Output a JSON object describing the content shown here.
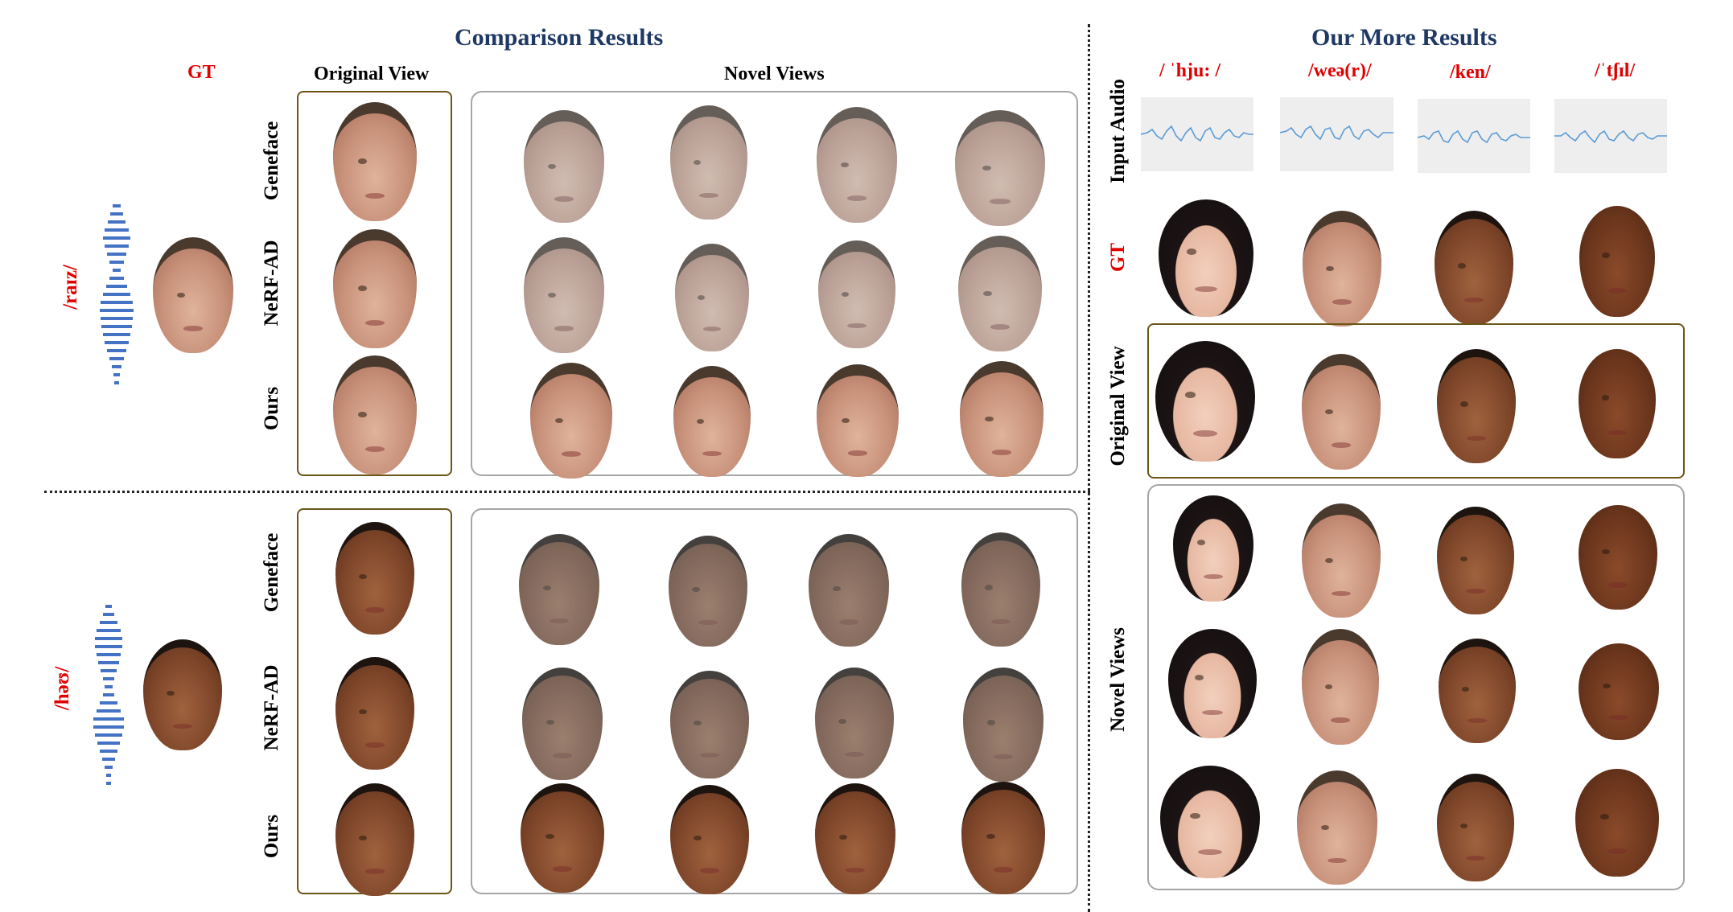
{
  "left": {
    "title": "Comparison Results",
    "gt_label": "GT",
    "original_view_label": "Original View",
    "novel_views_label": "Novel Views",
    "row_labels": [
      "Geneface",
      "NeRF-AD",
      "Ours"
    ],
    "panels": [
      {
        "phoneme": "/raɪz/",
        "subject": "macron"
      },
      {
        "phoneme": "/həʊ/",
        "subject": "obama"
      }
    ]
  },
  "right": {
    "title": "Our More Results",
    "phonemes": [
      "/ ˈhju: /",
      "/weə(r)/",
      "/ken/",
      "/ˈtʃɪl/"
    ],
    "row_labels": {
      "input_audio": "Input Audio",
      "gt": "GT",
      "original_view": "Original View",
      "novel_views": "Novel Views"
    },
    "subjects": [
      "woman",
      "macron",
      "obama",
      "van"
    ]
  },
  "colors": {
    "title": "#1f3864",
    "accent_red": "#e00000",
    "original_box": "#6b5616",
    "novel_box": "#a6a6a6",
    "waveform": "#4472c4",
    "audio_line": "#5b9bd5"
  }
}
